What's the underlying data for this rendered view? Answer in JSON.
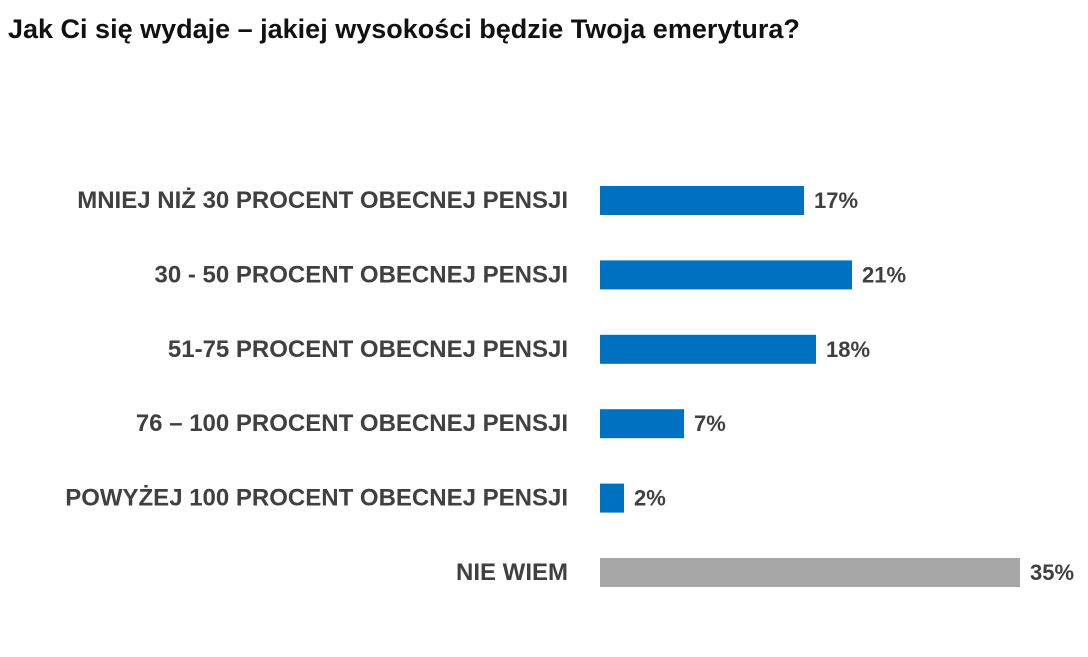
{
  "title": "Jak Ci się wydaje – jakiej wysokości będzie Twoja emerytura?",
  "chart_data": {
    "type": "bar",
    "orientation": "horizontal",
    "title": "Jak Ci się wydaje – jakiej wysokości będzie Twoja emerytura?",
    "categories": [
      "MNIEJ NIŻ 30 PROCENT OBECNEJ PENSJI",
      "30 - 50 PROCENT OBECNEJ PENSJI",
      "51-75 PROCENT OBECNEJ PENSJI",
      "76 – 100 PROCENT OBECNEJ PENSJI",
      "POWYŻEJ 100 PROCENT OBECNEJ PENSJI",
      "NIE WIEM"
    ],
    "values": [
      17,
      21,
      18,
      7,
      2,
      35
    ],
    "value_labels": [
      "17%",
      "21%",
      "18%",
      "7%",
      "2%",
      "35%"
    ],
    "colors": [
      "#0070C0",
      "#0070C0",
      "#0070C0",
      "#0070C0",
      "#0070C0",
      "#A6A6A6"
    ],
    "xlabel": "",
    "ylabel": "",
    "xlim": [
      0,
      35
    ],
    "grid": false,
    "legend": "none"
  }
}
